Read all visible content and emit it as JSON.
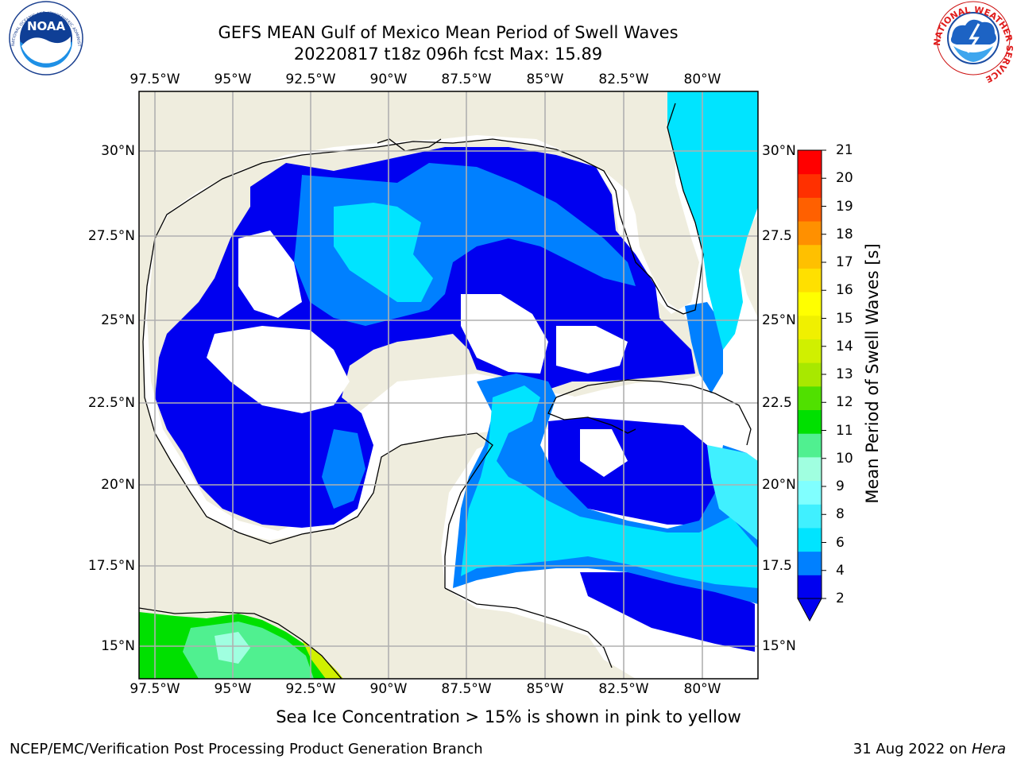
{
  "title": {
    "line1": "GEFS MEAN Gulf of Mexico Mean Period of Swell Waves",
    "line2": "20220817 t18z 096h fcst   Max: 15.89"
  },
  "map": {
    "lon_ticks": [
      "97.5°W",
      "95°W",
      "92.5°W",
      "90°W",
      "87.5°W",
      "85°W",
      "82.5°W",
      "80°W"
    ],
    "lat_ticks": [
      "30°N",
      "27.5°N",
      "25°N",
      "22.5°N",
      "20°N",
      "17.5°N",
      "15°N"
    ],
    "right_lat_ticks": [
      "30°N",
      "27.5",
      "25°N",
      "22.5",
      "20°N",
      "17.5",
      "15°N"
    ],
    "land_color": "#efedde",
    "ocean_gap_color": "#ffffff",
    "grid_color": "#b0b0b0"
  },
  "colorbar": {
    "label": "Mean Period of Swell Waves [s]",
    "ticks": [
      "21",
      "20",
      "19",
      "18",
      "17",
      "16",
      "15",
      "14",
      "13",
      "12",
      "11",
      "10",
      "9",
      "8",
      "6",
      "4",
      "2"
    ],
    "colors": [
      "#0000f0",
      "#0080ff",
      "#00e4ff",
      "#40f0ff",
      "#80ffff",
      "#a0ffe0",
      "#50f090",
      "#00e000",
      "#50e000",
      "#a8e800",
      "#d0f000",
      "#f0f000",
      "#ffff00",
      "#ffe000",
      "#ffc000",
      "#ff9000",
      "#ff6000",
      "#ff3000",
      "#ff0000"
    ]
  },
  "sea_ice_note": "Sea Ice Concentration > 15% is shown in pink to yellow",
  "credit": "NCEP/EMC/Verification Post Processing Product Generation Branch",
  "date_prefix": "31 Aug 2022 on ",
  "date_host": "Hera",
  "logos": {
    "left": "NOAA",
    "left_ring": "NATIONAL OCEANIC AND ATMOSPHERIC ADMINISTRATION · U.S. DEPARTMENT OF COMMERCE",
    "right_ring": "NATIONAL WEATHER SERVICE"
  }
}
